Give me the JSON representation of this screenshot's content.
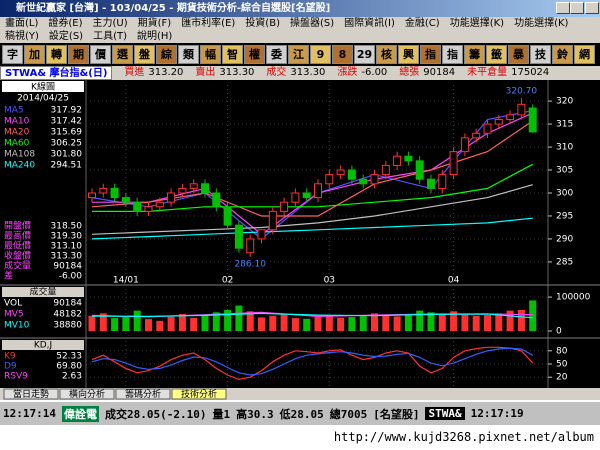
{
  "window": {
    "title": "新世紀贏家 [台灣] - 103/04/25 - 期貨技術分析-綜合自選股[名望股]",
    "menu": [
      "畫面(L)",
      "證券(E)",
      "主力(U)",
      "期貨(F)",
      "匯市利率(E)",
      "投資(B)",
      "操盤器(S)",
      "國際資訊(I)",
      "金融(C)",
      "功能選擇(K)",
      "功能選擇(K)"
    ],
    "menu2": [
      "稿視(Y)",
      "設定(S)",
      "工具(T)",
      "說明(H)"
    ],
    "toolbar": [
      "字",
      "加",
      "轉",
      "期",
      "價",
      "選",
      "盤",
      "綜",
      "類",
      "幅",
      "智",
      "權",
      "委",
      "江",
      "9",
      "8",
      "29",
      "核",
      "興",
      "指",
      "指",
      "籌",
      "籤",
      "暴",
      "技",
      "鈴",
      "網"
    ]
  },
  "quote": {
    "symbol": "STWA& 摩台指&(日)",
    "fields": [
      {
        "label": "買進",
        "value": "313.20"
      },
      {
        "label": "賣出",
        "value": "313.30"
      },
      {
        "label": "成交",
        "value": "313.30"
      },
      {
        "label": "漲跌",
        "value": "-6.00"
      },
      {
        "label": "總張",
        "value": "90184"
      },
      {
        "label": "未平倉量",
        "value": "175024"
      }
    ]
  },
  "price_panel": {
    "header": "K線圖",
    "date": "2014/04/25",
    "stats": [
      {
        "label": "開盤價",
        "value": "318.50"
      },
      {
        "label": "最高價",
        "value": "319.30"
      },
      {
        "label": "最低價",
        "value": "313.10"
      },
      {
        "label": "收盤價",
        "value": "313.30"
      },
      {
        "label": "成交量",
        "value": "90184"
      },
      {
        "label": "差",
        "value": "-6.00"
      }
    ]
  },
  "chart_data": [
    {
      "type": "candlestick",
      "x_labels": [
        "14/01",
        "02",
        "03",
        "04"
      ],
      "annotations": [
        "320.70",
        "286.10"
      ],
      "open": [
        299,
        300,
        301,
        299,
        298,
        296,
        297,
        298,
        300,
        301,
        302,
        300,
        297,
        293,
        287,
        290,
        292,
        296,
        298,
        300,
        299,
        302,
        304,
        305,
        303,
        302,
        304,
        306,
        308,
        307,
        303,
        301,
        304,
        309,
        312,
        313,
        315,
        316,
        317,
        318.5
      ],
      "high": [
        301,
        302,
        302,
        300,
        299,
        298,
        299,
        301,
        302,
        303,
        303,
        301,
        298,
        294,
        291,
        292,
        297,
        299,
        301,
        301,
        303,
        305,
        306,
        306,
        304,
        305,
        307,
        309,
        309,
        308,
        304,
        305,
        310,
        313,
        314,
        316,
        317,
        318,
        320.7,
        319.3
      ],
      "low": [
        298,
        299,
        298,
        297,
        295,
        295,
        296,
        297,
        299,
        300,
        299,
        296,
        292,
        287,
        286.1,
        289,
        291,
        295,
        297,
        298,
        298,
        301,
        303,
        302,
        301,
        301,
        303,
        305,
        306,
        302,
        300,
        300,
        303,
        308,
        311,
        312,
        314,
        315,
        316,
        313.1
      ],
      "close": [
        300,
        301,
        299,
        298,
        296,
        297,
        298,
        300,
        301,
        302,
        300,
        297,
        293,
        288,
        290,
        292,
        296,
        298,
        300,
        299,
        302,
        304,
        305,
        303,
        302,
        304,
        306,
        308,
        307,
        303,
        301,
        304,
        309,
        312,
        313,
        315,
        316,
        317,
        319.3,
        313.3
      ],
      "up_color": "#ff3030",
      "down_color": "#00c000",
      "series": [
        {
          "name": "MA5",
          "color": "#5050ff",
          "x": [
            0,
            5,
            10,
            15,
            20,
            25,
            30,
            35,
            39
          ],
          "values": [
            299,
            297,
            300,
            290,
            300,
            304,
            301,
            316,
            317.92
          ],
          "value_label": "317.92"
        },
        {
          "name": "MA10",
          "color": "#ff40ff",
          "x": [
            0,
            5,
            10,
            15,
            20,
            25,
            30,
            35,
            39
          ],
          "values": [
            298,
            298,
            301,
            291,
            300,
            303,
            305,
            313,
            317.42
          ],
          "value_label": "317.42"
        },
        {
          "name": "MA20",
          "color": "#ff6060",
          "x": [
            0,
            5,
            10,
            15,
            20,
            25,
            30,
            35,
            39
          ],
          "values": [
            297,
            298,
            300,
            295,
            295,
            302,
            305,
            309,
            315.69
          ],
          "value_label": "315.69"
        },
        {
          "name": "MA60",
          "color": "#00ff00",
          "x": [
            0,
            5,
            10,
            15,
            20,
            25,
            30,
            35,
            39
          ],
          "values": [
            296,
            296,
            297,
            297,
            297,
            298,
            299,
            301,
            306.25
          ],
          "value_label": "306.25"
        },
        {
          "name": "MA108",
          "color": "#c0c0c0",
          "x": [
            0,
            5,
            10,
            15,
            20,
            25,
            30,
            35,
            39
          ],
          "values": [
            291,
            291.5,
            292,
            292.5,
            293.5,
            295,
            297,
            299,
            301.8
          ],
          "value_label": "301.80"
        },
        {
          "name": "MA240",
          "color": "#00ffff",
          "x": [
            0,
            5,
            10,
            15,
            20,
            25,
            30,
            35,
            39
          ],
          "values": [
            290,
            290.5,
            291,
            291.5,
            292,
            292.5,
            293,
            293.5,
            294.51
          ],
          "value_label": "294.51"
        }
      ],
      "ylim": [
        281.5,
        323.5
      ],
      "yticks": [
        285,
        290,
        295,
        300,
        305,
        310,
        315,
        320
      ]
    },
    {
      "type": "bar",
      "title": "成交量",
      "name": "VOL",
      "color": "#ffffff",
      "values": [
        45000,
        52000,
        38000,
        41000,
        60000,
        35000,
        30000,
        42000,
        50000,
        39000,
        48000,
        55000,
        62000,
        75000,
        58000,
        40000,
        45000,
        50000,
        38000,
        36000,
        42000,
        47000,
        39000,
        41000,
        44000,
        52000,
        48000,
        43000,
        46000,
        60000,
        55000,
        50000,
        58000,
        49000,
        45000,
        47000,
        52000,
        60000,
        62000,
        90184
      ],
      "series": [
        {
          "name": "MV5",
          "color": "#ff40ff",
          "x": [
            0,
            5,
            10,
            15,
            20,
            25,
            30,
            35,
            39
          ],
          "values": [
            46000,
            42000,
            48000,
            55000,
            43000,
            47000,
            50000,
            50000,
            48182
          ]
        },
        {
          "name": "MV10",
          "color": "#00ffff",
          "x": [
            0,
            5,
            10,
            15,
            20,
            25,
            30,
            35,
            39
          ],
          "values": [
            44000,
            43000,
            46000,
            52000,
            47000,
            45000,
            49000,
            50000,
            38880
          ]
        }
      ],
      "ylim": [
        0,
        115000
      ],
      "yticks": [
        0,
        100000
      ]
    },
    {
      "type": "line",
      "title": "KD,J",
      "series": [
        {
          "name": "K9",
          "color": "#ff3030",
          "values": [
            60,
            70,
            55,
            40,
            30,
            35,
            45,
            60,
            70,
            75,
            60,
            40,
            25,
            15,
            20,
            35,
            55,
            70,
            80,
            78,
            75,
            80,
            82,
            70,
            60,
            65,
            75,
            80,
            75,
            45,
            30,
            40,
            65,
            80,
            85,
            88,
            88,
            86,
            80,
            52.33
          ],
          "value_label": "52.33"
        },
        {
          "name": "D9",
          "color": "#3060ff",
          "values": [
            55,
            62,
            60,
            52,
            42,
            38,
            40,
            48,
            58,
            66,
            64,
            55,
            42,
            30,
            25,
            28,
            38,
            50,
            62,
            70,
            73,
            76,
            78,
            75,
            70,
            67,
            68,
            72,
            74,
            65,
            52,
            46,
            52,
            62,
            72,
            80,
            84,
            86,
            84,
            69.8
          ],
          "value_label": "69.80"
        }
      ],
      "extra": {
        "name": "RSV9",
        "value": 2.63
      },
      "ylim": [
        0,
        100
      ],
      "yticks": [
        20,
        50,
        80
      ]
    }
  ],
  "tabs": [
    "當日走勢",
    "橫向分析",
    "籌碼分析",
    "技術分析"
  ],
  "status": [
    "12:17:14",
    "偉詮電",
    "成交28.05(-2.10)",
    "量1",
    "高30.3",
    "低28.05",
    "總7005",
    "[名望股]",
    "STWA&",
    "12:17:19"
  ],
  "footer": "http://www.kujd3268.pixnet.net/album"
}
